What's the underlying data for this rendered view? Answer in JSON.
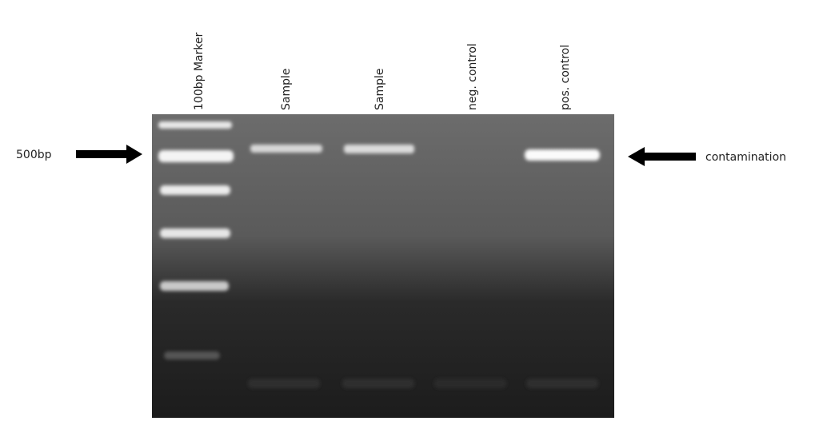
{
  "lanes": [
    {
      "label": "100bp Marker"
    },
    {
      "label": "Sample"
    },
    {
      "label": "Sample"
    },
    {
      "label": "neg. control"
    },
    {
      "label": "pos. control"
    }
  ],
  "annotations": {
    "left": "500bp",
    "right": "contamination"
  }
}
